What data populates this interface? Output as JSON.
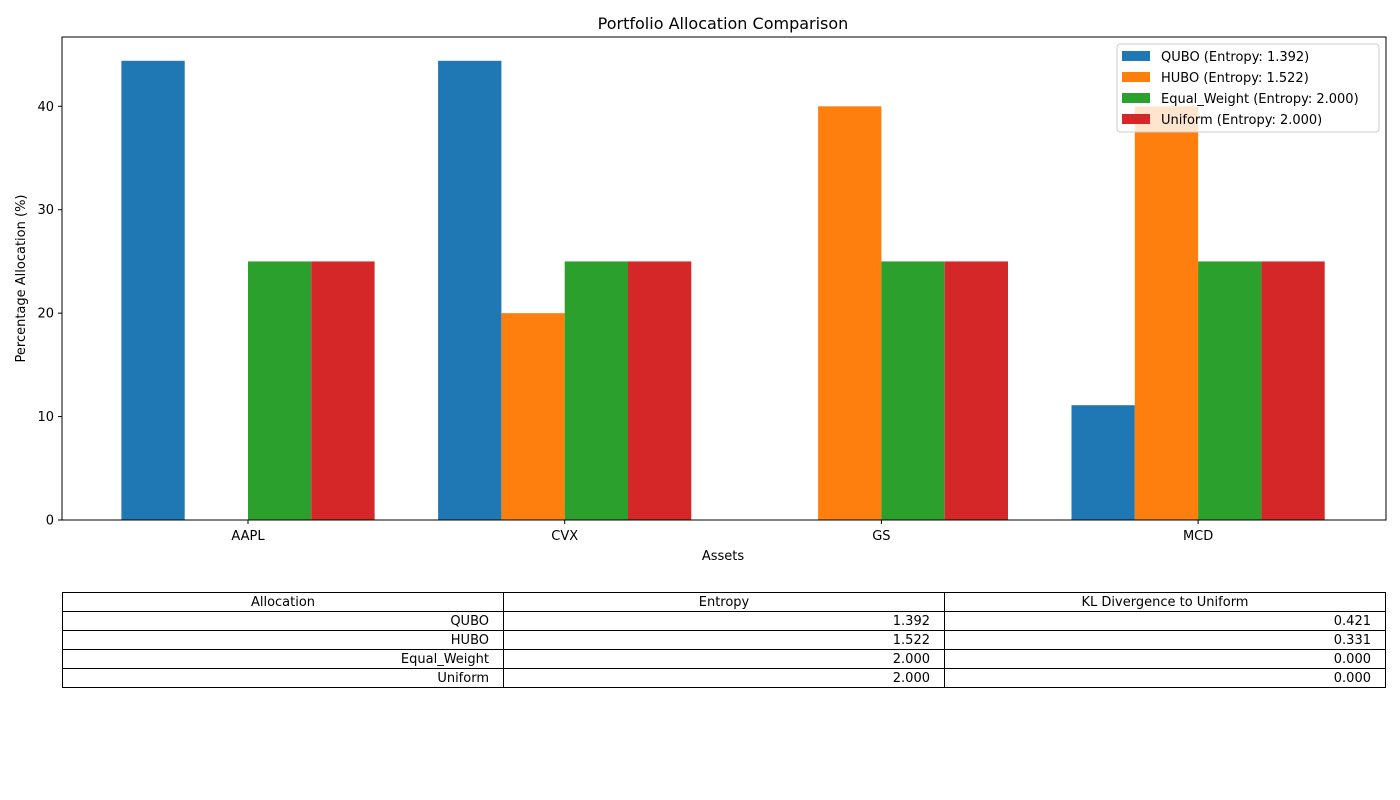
{
  "chart_data": {
    "type": "bar",
    "title": "Portfolio Allocation Comparison",
    "xlabel": "Assets",
    "ylabel": "Percentage Allocation (%)",
    "categories": [
      "AAPL",
      "CVX",
      "GS",
      "MCD"
    ],
    "ylim": [
      0,
      46.7
    ],
    "yticks": [
      0,
      10,
      20,
      30,
      40
    ],
    "legend_position": "top-right",
    "grid": false,
    "series": [
      {
        "name": "QUBO (Entropy: 1.392)",
        "color": "#1f77b4",
        "values": [
          44.4,
          44.4,
          0,
          11.1
        ]
      },
      {
        "name": "HUBO (Entropy: 1.522)",
        "color": "#ff7f0e",
        "values": [
          0,
          20,
          40,
          40
        ]
      },
      {
        "name": "Equal_Weight (Entropy: 2.000)",
        "color": "#2ca02c",
        "values": [
          25,
          25,
          25,
          25
        ]
      },
      {
        "name": "Uniform (Entropy: 2.000)",
        "color": "#d62728",
        "values": [
          25,
          25,
          25,
          25
        ]
      }
    ]
  },
  "table": {
    "headers": [
      "Allocation",
      "Entropy",
      "KL Divergence to Uniform"
    ],
    "rows": [
      [
        "QUBO",
        "1.392",
        "0.421"
      ],
      [
        "HUBO",
        "1.522",
        "0.331"
      ],
      [
        "Equal_Weight",
        "2.000",
        "0.000"
      ],
      [
        "Uniform",
        "2.000",
        "0.000"
      ]
    ]
  }
}
